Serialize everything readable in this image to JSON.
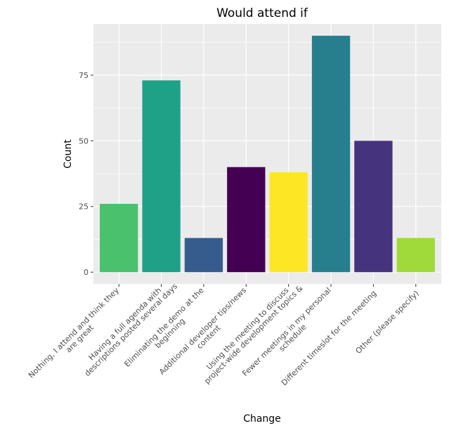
{
  "chart_data": {
    "type": "bar",
    "title": "Would attend if",
    "xlabel": "Change",
    "ylabel": "Count",
    "categories": [
      [
        "Nothing, I attend and think they",
        "are great"
      ],
      [
        "Having a full agenda with",
        "descriptions posted several days"
      ],
      [
        "Eliminating the demo at the",
        "beginning"
      ],
      [
        "Additional developer tips/news",
        "content"
      ],
      [
        "Using the meeting to discuss",
        "project-wide development topics &"
      ],
      [
        "Fewer meetings in my personal",
        "schedule"
      ],
      [
        "Different timeslot for the meeting"
      ],
      [
        "Other (please specify)"
      ]
    ],
    "values": [
      26,
      73,
      13,
      40,
      38,
      90,
      50,
      13
    ],
    "colors": [
      "#4AC16D",
      "#1FA187",
      "#365C8D",
      "#440154",
      "#FDE725",
      "#277F8E",
      "#46337E",
      "#9FDA3A"
    ],
    "yticks": [
      0,
      25,
      50,
      75
    ],
    "ylim": [
      -4.5,
      94.5
    ],
    "grid": true,
    "panel_background": "#EBEBEB",
    "gridline_color": "#FFFFFF"
  }
}
